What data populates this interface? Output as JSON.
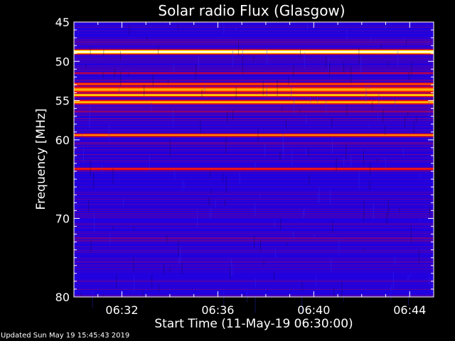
{
  "chart_data": {
    "type": "heatmap",
    "title": "Solar radio Flux (Glasgow)",
    "xlabel": "Start Time (11-May-19 06:30:00)",
    "ylabel": "Frequency [MHz]",
    "x_tick_labels": [
      "06:32",
      "06:36",
      "06:40",
      "06:44"
    ],
    "x_ticks_minutes": [
      2,
      6,
      10,
      14
    ],
    "xlim_minutes": [
      0,
      15
    ],
    "y_tick_labels": [
      "45",
      "50",
      "55",
      "60",
      "70",
      "80"
    ],
    "y_ticks": [
      45,
      50,
      55,
      60,
      70,
      80
    ],
    "ylim": [
      45,
      80
    ],
    "y_reversed": true,
    "grid": false,
    "colormap": [
      "#000033",
      "#0000ff",
      "#ff0000",
      "#ffff00",
      "#ffffff"
    ],
    "background_intensity": 0.28,
    "bands": [
      {
        "freq": 48.8,
        "width": 0.25,
        "intensity": 1.0
      },
      {
        "freq": 51.5,
        "width": 0.12,
        "intensity": 0.45
      },
      {
        "freq": 52.9,
        "width": 0.18,
        "intensity": 0.6
      },
      {
        "freq": 53.6,
        "width": 0.35,
        "intensity": 0.68
      },
      {
        "freq": 54.3,
        "width": 0.2,
        "intensity": 0.74
      },
      {
        "freq": 55.2,
        "width": 0.25,
        "intensity": 0.7
      },
      {
        "freq": 56.4,
        "width": 0.15,
        "intensity": 0.4
      },
      {
        "freq": 59.4,
        "width": 0.18,
        "intensity": 0.66
      },
      {
        "freq": 60.4,
        "width": 0.12,
        "intensity": 0.35
      },
      {
        "freq": 63.7,
        "width": 0.15,
        "intensity": 0.55
      },
      {
        "freq": 72.5,
        "width": 0.1,
        "intensity": 0.38
      },
      {
        "freq": 74.2,
        "width": 0.15,
        "intensity": 0.15
      },
      {
        "freq": 79.5,
        "width": 0.3,
        "intensity": 0.12
      }
    ]
  },
  "footer": "Updated Sun May 19 15:45:43 2019"
}
